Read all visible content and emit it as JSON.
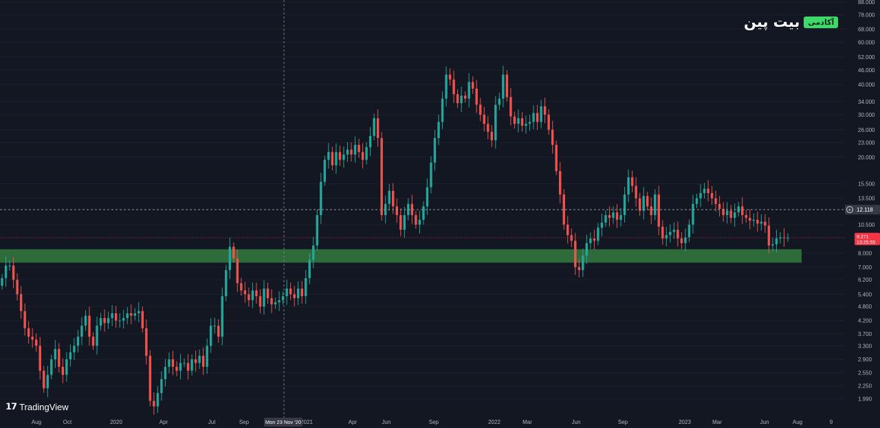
{
  "chart_data": {
    "type": "candlestick",
    "y_scale": "log",
    "ylim": [
      1.75,
      88.0
    ],
    "y_ticks": [
      "1.990",
      "2.250",
      "2.550",
      "2.900",
      "3.300",
      "3.700",
      "4.200",
      "4.800",
      "5.400",
      "6.200",
      "7.000",
      "8.000",
      "10.500",
      "13.500",
      "15.500",
      "20.000",
      "23.000",
      "26.000",
      "30.000",
      "34.000",
      "40.000",
      "46.000",
      "52.000",
      "60.000",
      "68.000",
      "78.000",
      "88.000"
    ],
    "x_ticks": [
      "Aug",
      "Oct",
      "2020",
      "Apr",
      "Jul",
      "Sep",
      "2021",
      "Apr",
      "Jun",
      "Sep",
      "2022",
      "Mar",
      "Jun",
      "Sep",
      "2023",
      "Mar",
      "Jun",
      "Aug",
      "9"
    ],
    "crosshair_label": "Mon 23 Nov '20",
    "crosshair_price": "12.118",
    "last_price": "9.271",
    "countdown": "13:25:55",
    "support_zone": [
      7.3,
      8.3
    ],
    "colors": {
      "up": "#26a69a",
      "down": "#ef5350",
      "zone": "#2e6b3a",
      "background": "#131722",
      "price_tag": "#f23645"
    },
    "closes": [
      6.3,
      7.1,
      7.1,
      6.2,
      5.4,
      4.6,
      3.9,
      3.6,
      3.5,
      3.3,
      2.6,
      2.2,
      2.5,
      2.9,
      3.2,
      2.7,
      2.5,
      2.9,
      3.1,
      3.3,
      3.6,
      4.0,
      4.4,
      3.6,
      3.3,
      4.0,
      4.3,
      4.1,
      4.3,
      4.5,
      4.2,
      4.2,
      4.3,
      4.5,
      4.4,
      4.5,
      4.6,
      3.9,
      3.0,
      1.95,
      1.85,
      2.1,
      2.4,
      2.7,
      2.9,
      2.7,
      2.6,
      2.8,
      2.8,
      2.6,
      2.9,
      2.8,
      3.0,
      2.7,
      3.3,
      4.0,
      4.0,
      3.6,
      5.3,
      6.8,
      8.5,
      7.6,
      6.0,
      5.6,
      5.4,
      5.1,
      5.6,
      5.3,
      4.8,
      5.7,
      5.2,
      4.9,
      5.0,
      5.1,
      5.3,
      5.7,
      5.4,
      5.2,
      5.7,
      5.3,
      6.3,
      7.5,
      8.6,
      11.5,
      15.8,
      19.5,
      21.0,
      18.5,
      21.0,
      19.5,
      20.5,
      21.5,
      20.5,
      22.5,
      21.0,
      19.5,
      22.0,
      24.5,
      29.0,
      24.0,
      11.5,
      12.8,
      14.5,
      12.5,
      11.5,
      10.0,
      11.5,
      12.8,
      11.5,
      10.5,
      11.0,
      12.5,
      15.0,
      19.0,
      24.0,
      28.0,
      35.0,
      44.0,
      42.0,
      36.5,
      33.5,
      36.0,
      35.0,
      41.0,
      38.5,
      33.0,
      30.0,
      27.5,
      25.5,
      23.5,
      33.0,
      35.0,
      44.0,
      35.5,
      29.5,
      27.5,
      29.0,
      27.0,
      27.5,
      28.0,
      30.5,
      28.0,
      32.5,
      30.0,
      26.0,
      22.5,
      17.5,
      14.0,
      10.5,
      9.5,
      9.0,
      7.0,
      6.8,
      7.8,
      8.8,
      9.2,
      9.0,
      10.2,
      10.7,
      11.5,
      11.2,
      11.8,
      11.0,
      11.5,
      14.0,
      16.5,
      15.2,
      13.5,
      12.0,
      13.8,
      12.5,
      11.5,
      14.0,
      10.3,
      9.2,
      9.5,
      9.8,
      10.0,
      9.2,
      8.8,
      9.3,
      10.5,
      12.8,
      13.5,
      14.2,
      14.8,
      14.2,
      13.5,
      12.8,
      12.2,
      11.5,
      12.0,
      11.2,
      11.8,
      12.5,
      11.5,
      11.2,
      10.9,
      11.0,
      10.6,
      10.8,
      10.4,
      8.6,
      8.7,
      9.2,
      9.3,
      9.25,
      9.271
    ]
  },
  "watermark": {
    "tv_text": "TradingView"
  },
  "brand": {
    "name": "بیت پین",
    "badge": "آکادمی"
  }
}
